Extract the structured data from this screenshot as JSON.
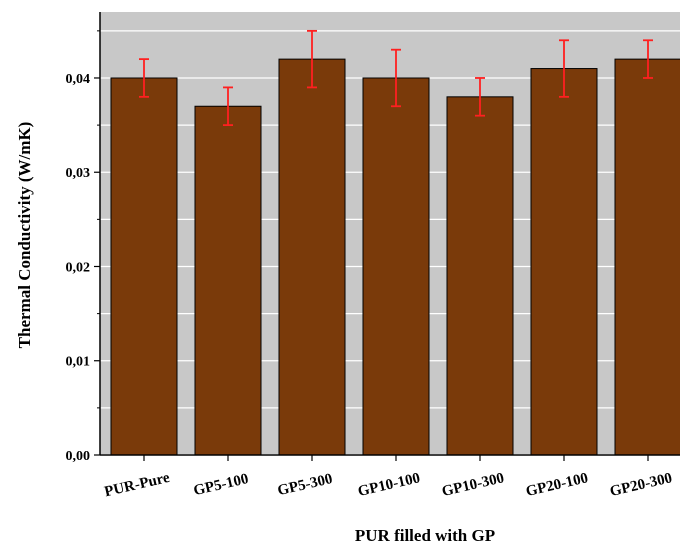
{
  "chart_data": {
    "type": "bar",
    "title": "",
    "xlabel": "PUR filled with GP",
    "ylabel": "Thermal Conductivity (W/mK)",
    "categories": [
      "PUR-Pure",
      "GP5-100",
      "GP5-300",
      "GP10-100",
      "GP10-300",
      "GP20-100",
      "GP20-300"
    ],
    "values": [
      0.04,
      0.037,
      0.042,
      0.04,
      0.038,
      0.041,
      0.042
    ],
    "error_low": [
      0.038,
      0.035,
      0.039,
      0.037,
      0.036,
      0.038,
      0.04
    ],
    "error_high": [
      0.042,
      0.039,
      0.045,
      0.043,
      0.04,
      0.044,
      0.044
    ],
    "ylim": [
      0,
      0.047
    ],
    "yticks": [
      "0,00",
      "0,01",
      "0,02",
      "0,03",
      "0,04"
    ],
    "ytick_values": [
      0,
      0.01,
      0.02,
      0.03,
      0.04
    ],
    "grid": true,
    "bar_color": "#7a3a0a",
    "errorbar_color": "#ff2020",
    "plot_background": "#c8c8c8"
  }
}
